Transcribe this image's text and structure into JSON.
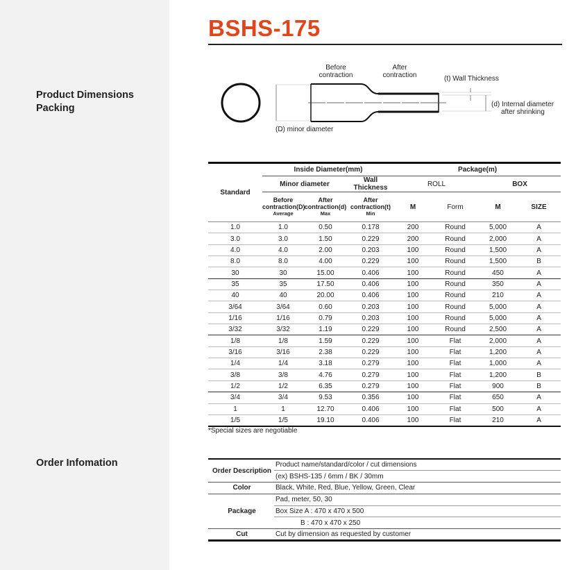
{
  "sidebar": {
    "sections": [
      "Product Dimensions\nPacking",
      "Order Infomation"
    ],
    "product_dimensions": "Product Dimensions",
    "packing": "Packing",
    "order_information": "Order Infomation"
  },
  "title": "BSHS-175",
  "accent_color": "#e0461c",
  "diagram": {
    "before1": "Before",
    "before2": "contraction",
    "after1": "After",
    "after2": "contraction",
    "wall": "(t) Wall Thickness",
    "internal1": "(d) Internal diameter",
    "internal2": "after shrinking",
    "minor": "(D) minor diameter"
  },
  "spec": {
    "headers": {
      "standard": "Standard",
      "inside": "Inside Diameter(mm)",
      "package": "Package(m)",
      "minor": "Minor diameter",
      "wall": "Wall Thickness",
      "roll": "ROLL",
      "box": "BOX",
      "before": "Before",
      "contraction_D": "contraction(D)",
      "average": "Average",
      "after": "After",
      "contraction_d": "contraction(d)",
      "max": "Max",
      "contraction_t": "contraction(t)",
      "min": "Min",
      "m": "M",
      "form": "Form",
      "size": "SIZE"
    },
    "rows": [
      [
        "1.0",
        "1.0",
        "0.50",
        "0.178",
        "200",
        "Round",
        "5,000",
        "A"
      ],
      [
        "3.0",
        "3.0",
        "1.50",
        "0.229",
        "200",
        "Round",
        "2,000",
        "A"
      ],
      [
        "4.0",
        "4.0",
        "2.00",
        "0.203",
        "100",
        "Round",
        "1,500",
        "A"
      ],
      [
        "8.0",
        "8.0",
        "4.00",
        "0.229",
        "100",
        "Round",
        "1,500",
        "B"
      ],
      [
        "30",
        "30",
        "15.00",
        "0.406",
        "100",
        "Round",
        "450",
        "A"
      ],
      [
        "35",
        "35",
        "17.50",
        "0.406",
        "100",
        "Round",
        "350",
        "A"
      ],
      [
        "40",
        "40",
        "20.00",
        "0.406",
        "100",
        "Round",
        "210",
        "A"
      ],
      [
        "3/64",
        "3/64",
        "0.60",
        "0.203",
        "100",
        "Round",
        "5,000",
        "A"
      ],
      [
        "1/16",
        "1/16",
        "0.79",
        "0.203",
        "100",
        "Round",
        "5,000",
        "A"
      ],
      [
        "3/32",
        "3/32",
        "1.19",
        "0.229",
        "100",
        "Round",
        "2,500",
        "A"
      ],
      [
        "1/8",
        "1/8",
        "1.59",
        "0.229",
        "100",
        "Flat",
        "2,000",
        "A"
      ],
      [
        "3/16",
        "3/16",
        "2.38",
        "0.229",
        "100",
        "Flat",
        "1,200",
        "A"
      ],
      [
        "1/4",
        "1/4",
        "3.18",
        "0.279",
        "100",
        "Flat",
        "1,000",
        "A"
      ],
      [
        "3/8",
        "3/8",
        "4.76",
        "0.279",
        "100",
        "Flat",
        "1,200",
        "B"
      ],
      [
        "1/2",
        "1/2",
        "6.35",
        "0.279",
        "100",
        "Flat",
        "900",
        "B"
      ],
      [
        "3/4",
        "3/4",
        "9.53",
        "0.356",
        "100",
        "Flat",
        "650",
        "A"
      ],
      [
        "1",
        "1",
        "12.70",
        "0.406",
        "100",
        "Flat",
        "500",
        "A"
      ],
      [
        "1/5",
        "1/5",
        "19.10",
        "0.406",
        "100",
        "Flat",
        "210",
        "A"
      ]
    ]
  },
  "note": "*Special sizes are negotiable",
  "order": {
    "order_description_label": "Order Description",
    "order_description": [
      "Product name/standard/color / cut dimensions",
      "(ex) BSHS-135 / 6mm / BK / 30mm"
    ],
    "color_label": "Color",
    "color": "Black, White, Red, Blue, Yellow, Green, Clear",
    "package_label": "Package",
    "package": [
      "Pad, meter,  50, 30",
      "Box Size A : 470 x 470 x 500",
      "B : 470 x 470 x 250"
    ],
    "cut_label": "Cut",
    "cut": "Cut by dimension as requested by customer"
  }
}
